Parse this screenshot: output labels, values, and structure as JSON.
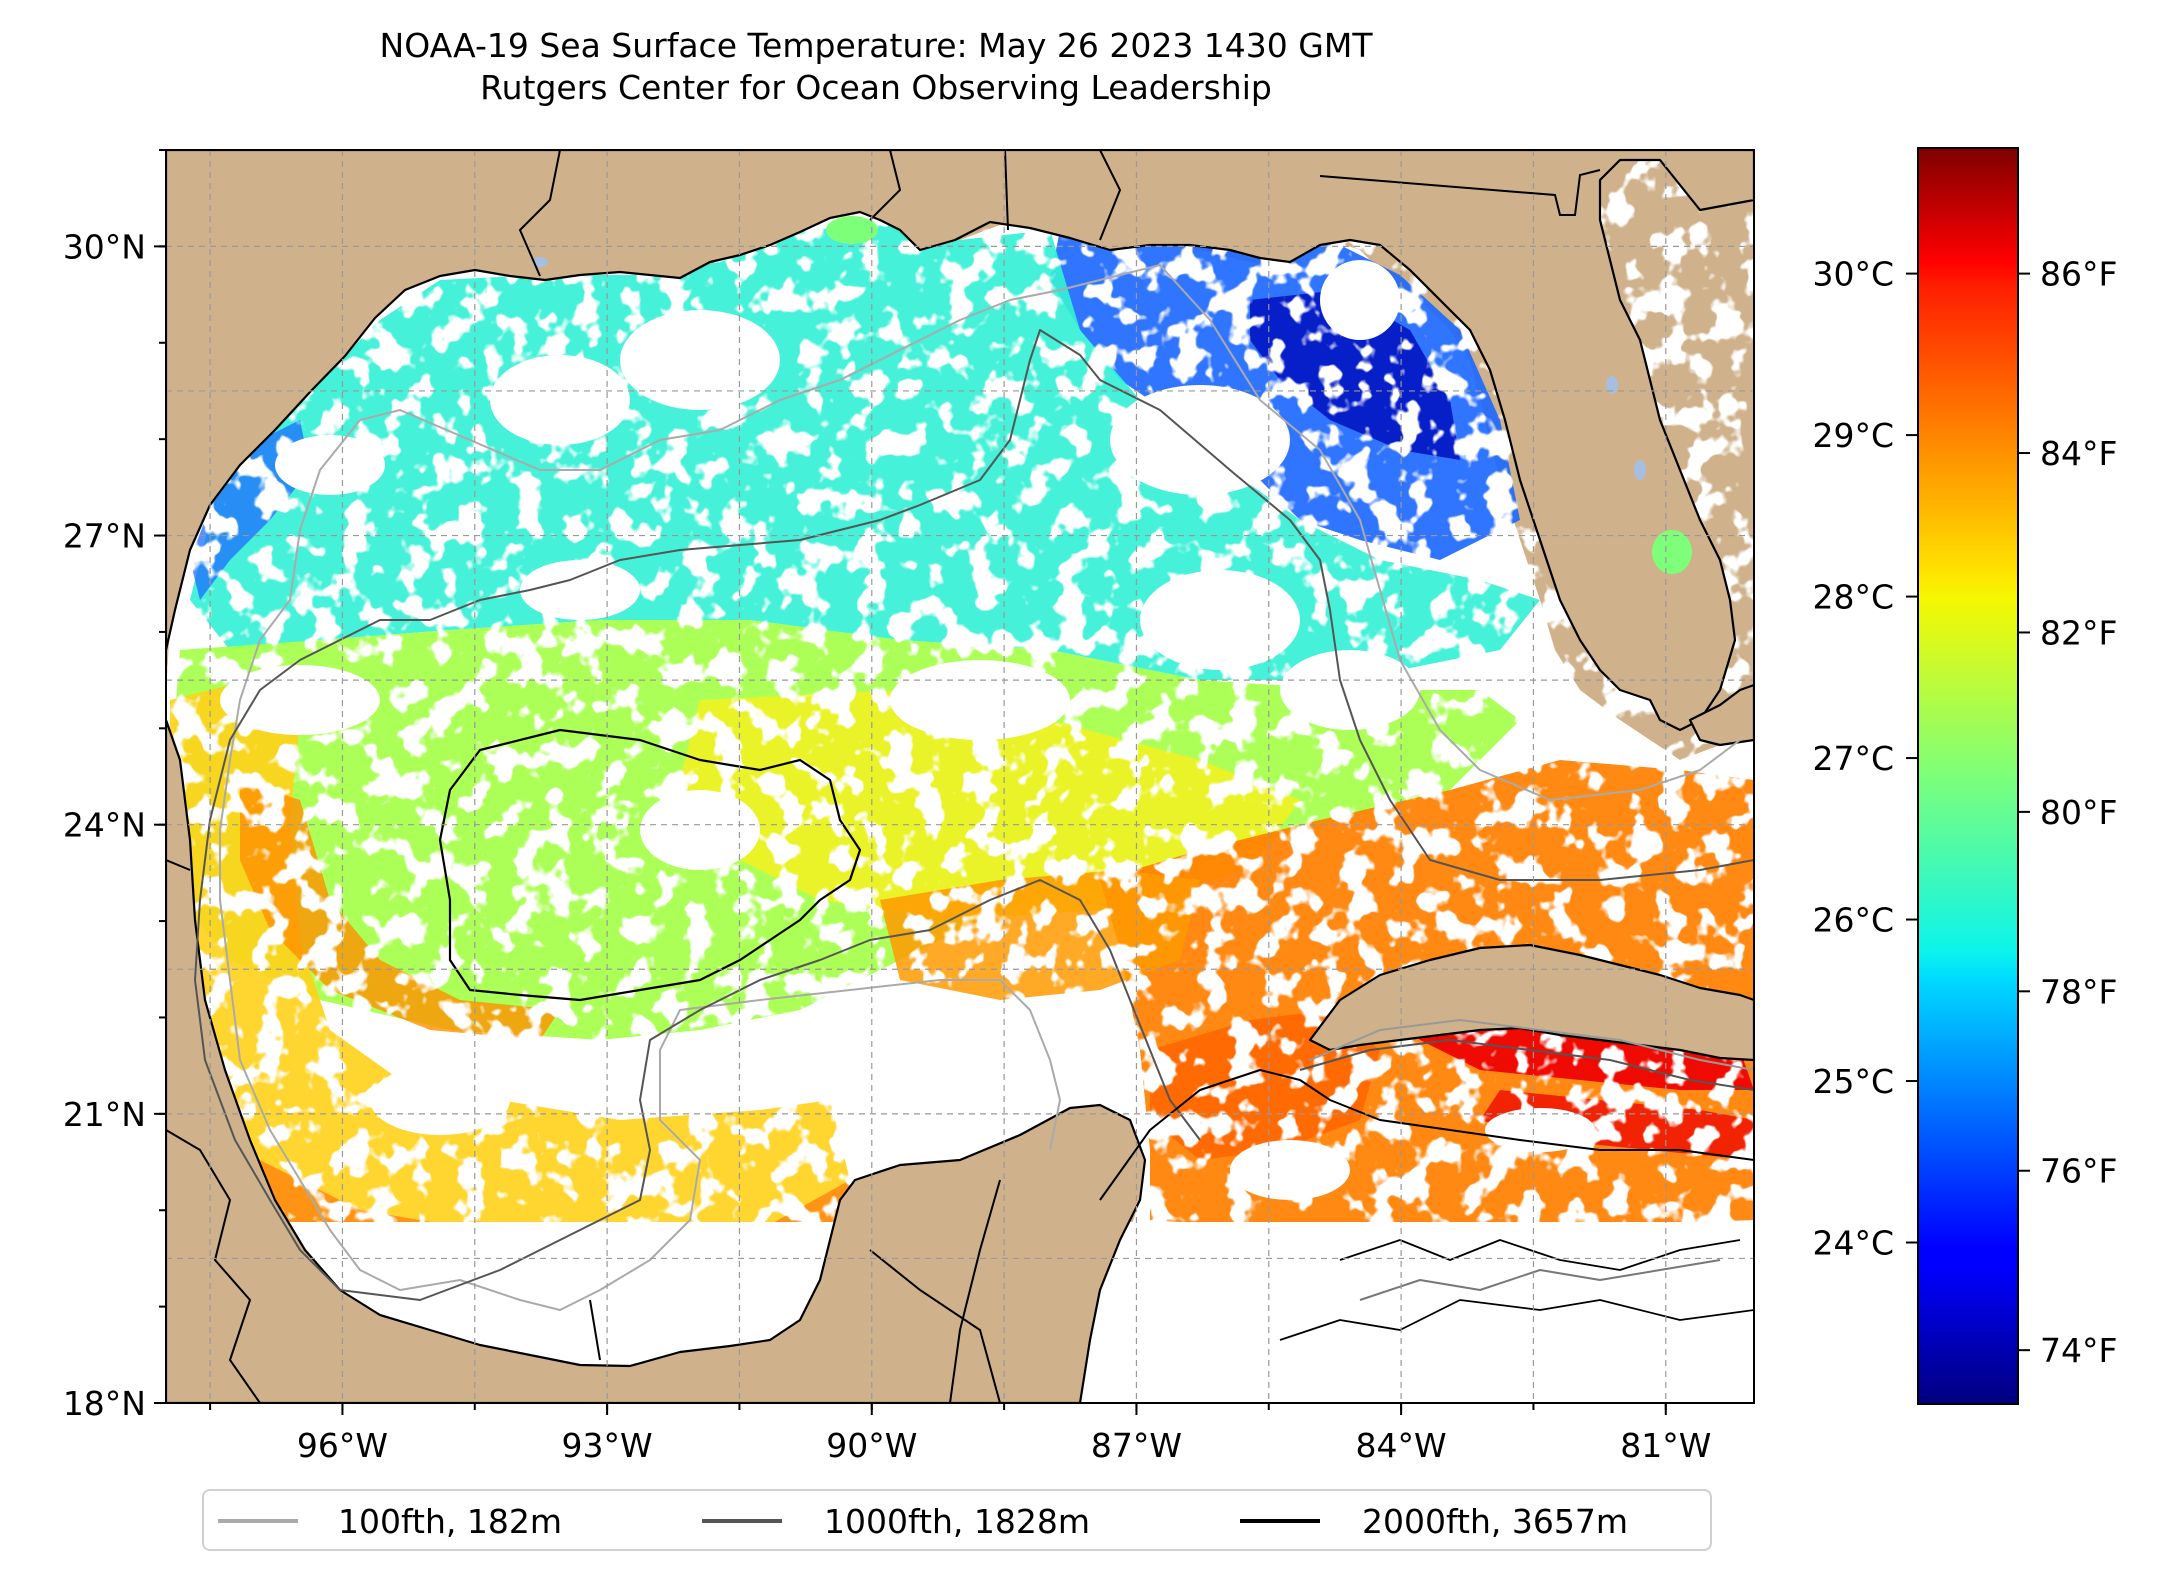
{
  "title": {
    "line1": "NOAA-19 Sea Surface Temperature: May 26 2023 1430 GMT",
    "line2": "Rutgers Center for Ocean Observing Leadership"
  },
  "map": {
    "lon_range": [
      -98.0,
      -80.0
    ],
    "lat_range": [
      18.0,
      31.0
    ],
    "lon_ticks": [
      {
        "value": -96,
        "label": "96°W"
      },
      {
        "value": -93,
        "label": "93°W"
      },
      {
        "value": -90,
        "label": "90°W"
      },
      {
        "value": -87,
        "label": "87°W"
      },
      {
        "value": -84,
        "label": "84°W"
      },
      {
        "value": -81,
        "label": "81°W"
      }
    ],
    "lat_ticks": [
      {
        "value": 18,
        "label": "18°N"
      },
      {
        "value": 21,
        "label": "21°N"
      },
      {
        "value": 24,
        "label": "24°N"
      },
      {
        "value": 27,
        "label": "27°N"
      },
      {
        "value": 30,
        "label": "30°N"
      }
    ],
    "grid": true,
    "land_color": "#cfb28b",
    "nodata_color": "#ffffff"
  },
  "colorbar": {
    "celsius_ticks": [
      {
        "value": 24,
        "label": "24°C"
      },
      {
        "value": 25,
        "label": "25°C"
      },
      {
        "value": 26,
        "label": "26°C"
      },
      {
        "value": 27,
        "label": "27°C"
      },
      {
        "value": 28,
        "label": "28°C"
      },
      {
        "value": 29,
        "label": "29°C"
      },
      {
        "value": 30,
        "label": "30°C"
      }
    ],
    "fahrenheit_ticks": [
      {
        "value": 74,
        "label": "74°F"
      },
      {
        "value": 76,
        "label": "76°F"
      },
      {
        "value": 78,
        "label": "78°F"
      },
      {
        "value": 80,
        "label": "80°F"
      },
      {
        "value": 82,
        "label": "82°F"
      },
      {
        "value": 84,
        "label": "84°F"
      },
      {
        "value": 86,
        "label": "86°F"
      }
    ],
    "range_f": [
      73.4,
      87.4
    ],
    "colormap": "jet"
  },
  "legend": {
    "placement": "bottom-center",
    "entries": [
      {
        "label": "100fth, 182m",
        "color": "#aaaaaa"
      },
      {
        "label": "1000fth, 1828m",
        "color": "#555555"
      },
      {
        "label": "2000fth, 3657m",
        "color": "#000000"
      }
    ]
  }
}
